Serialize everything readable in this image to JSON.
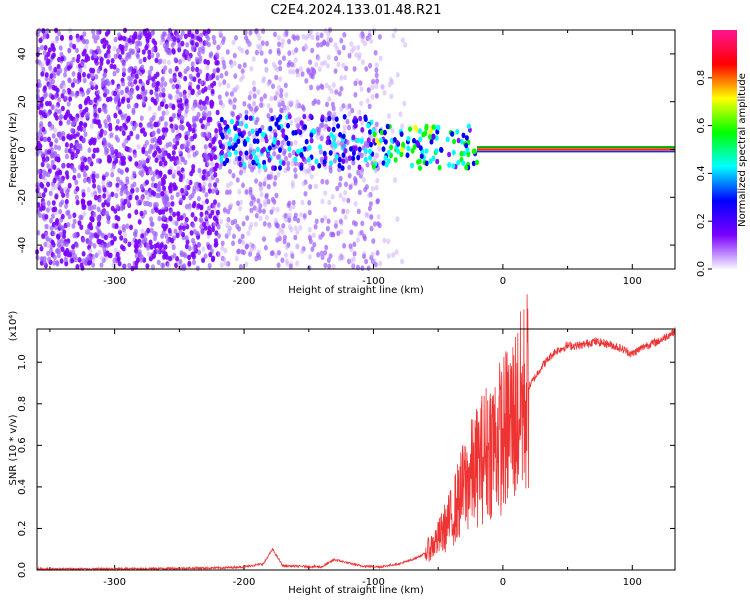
{
  "title": "C2E4.2024.133.01.48.R21",
  "chart_data": [
    {
      "type": "heatmap",
      "xlabel": "Height of straight line (km)",
      "ylabel": "Frequency (Hz)",
      "xlim": [
        -360,
        133
      ],
      "ylim": [
        -50,
        50
      ],
      "xticks": [
        -300,
        -200,
        -100,
        0,
        100
      ],
      "yticks": [
        -40,
        -20,
        0,
        20,
        40
      ],
      "colorbar": {
        "label": "Normalized spectral amplitude",
        "range": [
          0.0,
          1.0
        ],
        "ticks": [
          "0.0",
          "0.2",
          "0.4",
          "0.6",
          "0.8"
        ],
        "tick_values": [
          0.0,
          0.2,
          0.4,
          0.6,
          0.8
        ],
        "colormap": [
          "#f7f7ff",
          "#7a00ff",
          "#0000ff",
          "#00ffff",
          "#00ff00",
          "#ffff00",
          "#ff0000",
          "#ff1493"
        ]
      },
      "regions": [
        {
          "x": [
            -360,
            -220
          ],
          "f": [
            -50,
            50
          ],
          "amplitude": 0.12,
          "desc_density": 0.55
        },
        {
          "x": [
            -220,
            -95
          ],
          "f": [
            -50,
            50
          ],
          "amplitude": 0.06,
          "desc_density": 0.25
        },
        {
          "x": [
            -95,
            -75
          ],
          "f": [
            -50,
            50
          ],
          "amplitude": 0.02,
          "desc_density": 0.06
        },
        {
          "x": [
            -220,
            -100
          ],
          "f": [
            -8,
            14
          ],
          "amplitude": 0.3
        },
        {
          "x": [
            -100,
            -20
          ],
          "f": [
            -8,
            10
          ],
          "amplitude": 0.45
        },
        {
          "x": [
            -20,
            133
          ],
          "f": [
            -1,
            1
          ],
          "amplitude": 0.9
        }
      ]
    },
    {
      "type": "line",
      "xlabel": "Height of straight line (km)",
      "ylabel": "SNR (10 * v/v)",
      "y_multiplier": "(x10⁴)",
      "xlim": [
        -360,
        133
      ],
      "ylim": [
        0,
        1.16
      ],
      "xticks": [
        -300,
        -200,
        -100,
        0,
        100
      ],
      "yticks": [
        "0.0",
        "0.2",
        "0.4",
        "0.6",
        "0.8",
        "1.0"
      ],
      "ytick_values": [
        0.0,
        0.2,
        0.4,
        0.6,
        0.8,
        1.0
      ],
      "color": "#ee3333",
      "series": [
        {
          "x": [
            -360,
            -300,
            -250,
            -220,
            -200,
            -185,
            -178,
            -170,
            -140,
            -130,
            -110,
            -95,
            -80,
            -70,
            -60,
            -50,
            -40,
            -30,
            -20,
            -10,
            0,
            10,
            15,
            20,
            30,
            40,
            50,
            60,
            70,
            80,
            90,
            100,
            110,
            120,
            133
          ],
          "y": [
            0.005,
            0.005,
            0.008,
            0.01,
            0.015,
            0.03,
            0.1,
            0.02,
            0.015,
            0.05,
            0.02,
            0.015,
            0.03,
            0.05,
            0.08,
            0.15,
            0.25,
            0.4,
            0.5,
            0.6,
            0.65,
            0.75,
            0.8,
            0.88,
            0.98,
            1.05,
            1.08,
            1.08,
            1.1,
            1.09,
            1.07,
            1.04,
            1.08,
            1.1,
            1.15
          ]
        }
      ]
    }
  ]
}
